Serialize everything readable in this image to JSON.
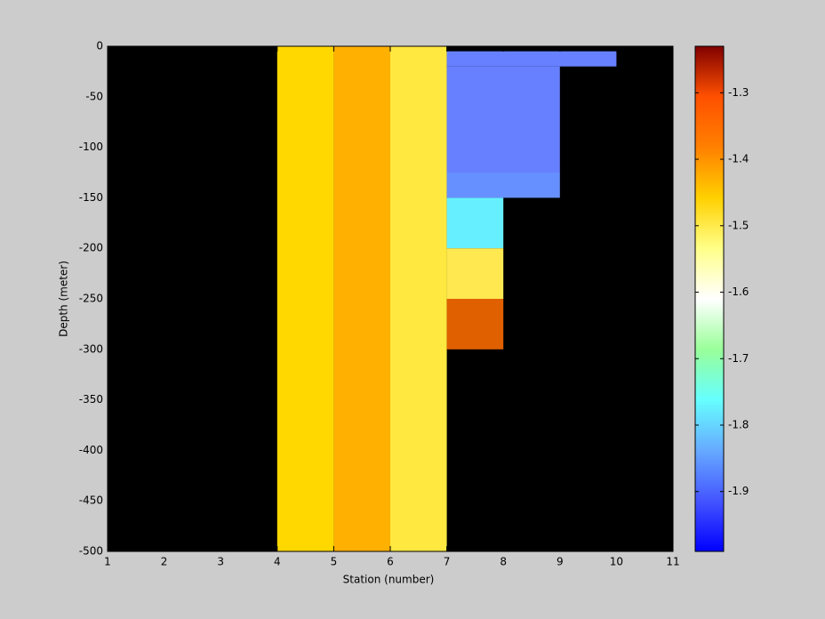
{
  "chart_data": {
    "type": "heatmap",
    "xlabel": "Station (number)",
    "ylabel": "Depth (meter)",
    "xlim": [
      1,
      11
    ],
    "xticks": [
      1,
      2,
      3,
      4,
      5,
      6,
      7,
      8,
      9,
      10,
      11
    ],
    "ylim": [
      -500,
      0
    ],
    "yticks": [
      0,
      -50,
      -100,
      -150,
      -200,
      -250,
      -300,
      -350,
      -400,
      -450,
      -500
    ],
    "background": "#000000",
    "cells": [
      {
        "x": [
          4,
          5
        ],
        "y": [
          -500,
          0
        ],
        "value": -1.42,
        "color": "#FFD800"
      },
      {
        "x": [
          5,
          6
        ],
        "y": [
          -500,
          0
        ],
        "value": -1.38,
        "color": "#FFB000"
      },
      {
        "x": [
          6,
          7
        ],
        "y": [
          -500,
          0
        ],
        "value": -1.46,
        "color": "#FFE840"
      },
      {
        "x": [
          7,
          10
        ],
        "y": [
          -20,
          -5
        ],
        "value": -1.88,
        "color": "#6680FF"
      },
      {
        "x": [
          7,
          9
        ],
        "y": [
          -125,
          -20
        ],
        "value": -1.88,
        "color": "#6680FF"
      },
      {
        "x": [
          7,
          9
        ],
        "y": [
          -150,
          -125
        ],
        "value": -1.86,
        "color": "#6690FF"
      },
      {
        "x": [
          7,
          8
        ],
        "y": [
          -200,
          -150
        ],
        "value": -1.8,
        "color": "#66F0FF"
      },
      {
        "x": [
          7,
          8
        ],
        "y": [
          -250,
          -200
        ],
        "value": -1.46,
        "color": "#FFE850"
      },
      {
        "x": [
          7,
          8
        ],
        "y": [
          -300,
          -250
        ],
        "value": -1.32,
        "color": "#E06000"
      }
    ],
    "clim": [
      -1.99,
      -1.23
    ],
    "cticks": [
      -1.3,
      -1.4,
      -1.5,
      -1.6,
      -1.7,
      -1.8,
      -1.9
    ],
    "colormap": [
      "#0000FF",
      "#4455FF",
      "#66AAFF",
      "#66FFFF",
      "#99FF99",
      "#FFFFFF",
      "#FFFF88",
      "#FFD000",
      "#FF8000",
      "#FF5000",
      "#800000"
    ]
  }
}
